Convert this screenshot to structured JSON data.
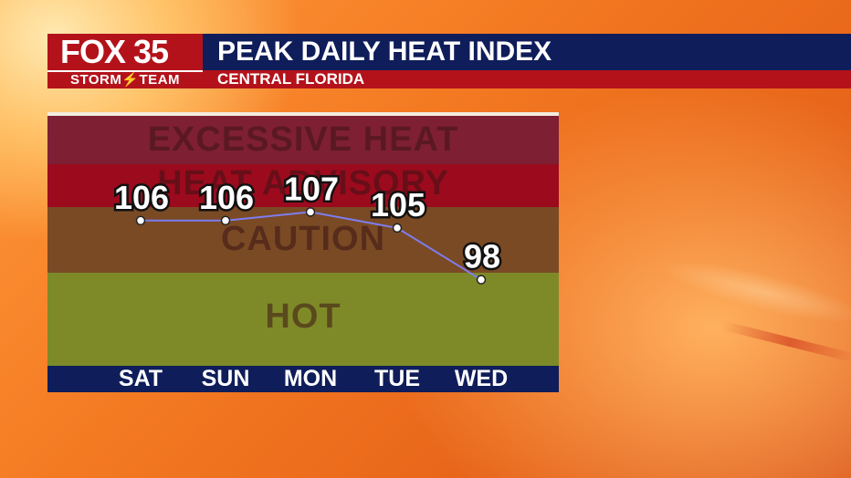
{
  "header": {
    "logo_fox": "FOX 35",
    "logo_team": "STORM⚡TEAM",
    "title": "PEAK DAILY HEAT INDEX",
    "subtitle": "CENTRAL FLORIDA"
  },
  "chart_data": {
    "type": "line",
    "title": "PEAK DAILY HEAT INDEX",
    "subtitle": "CENTRAL FLORIDA",
    "categories": [
      "SAT",
      "SUN",
      "MON",
      "TUE",
      "WED"
    ],
    "series": [
      {
        "values": [
          106,
          106,
          107,
          105,
          98
        ]
      }
    ],
    "data_labels": [
      "106",
      "106",
      "107",
      "105",
      "98"
    ],
    "bands": [
      {
        "label": "EXCESSIVE HEAT",
        "color": "#7e1f34"
      },
      {
        "label": "HEAT ADVISORY",
        "color": "#9c0a1e"
      },
      {
        "label": "CAUTION",
        "color": "#7a4a24"
      },
      {
        "label": "HOT",
        "color": "#7e8a28"
      }
    ],
    "line_color": "#7d7df0",
    "marker_color": "#ffffff",
    "grid": false,
    "legend": "none"
  }
}
